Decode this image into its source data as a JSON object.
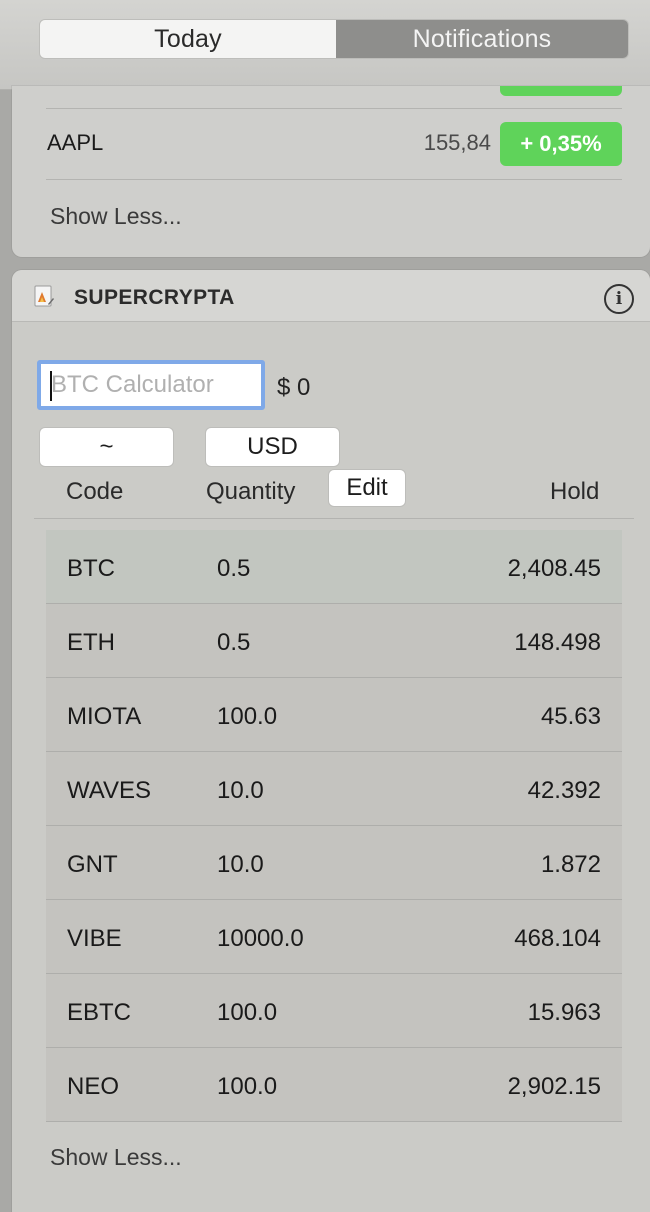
{
  "header": {
    "tabs": [
      "Today",
      "Notifications"
    ]
  },
  "stocks": {
    "row": {
      "symbol": "AAPL",
      "price": "155,84",
      "change": "+ 0,35%"
    },
    "show_less": "Show Less..."
  },
  "crypto": {
    "title": "SUPERCRYPTA",
    "calculator": {
      "placeholder": "BTC Calculator",
      "result": "$ 0"
    },
    "selectors": {
      "left": "~",
      "currency": "USD"
    },
    "columns": {
      "code": "Code",
      "quantity": "Quantity",
      "edit": "Edit",
      "hold": "Hold"
    },
    "rows": [
      {
        "code": "BTC",
        "quantity": "0.5",
        "hold": "2,408.45"
      },
      {
        "code": "ETH",
        "quantity": "0.5",
        "hold": "148.498"
      },
      {
        "code": "MIOTA",
        "quantity": "100.0",
        "hold": "45.63"
      },
      {
        "code": "WAVES",
        "quantity": "10.0",
        "hold": "42.392"
      },
      {
        "code": "GNT",
        "quantity": "10.0",
        "hold": "1.872"
      },
      {
        "code": "VIBE",
        "quantity": "10000.0",
        "hold": "468.104"
      },
      {
        "code": "EBTC",
        "quantity": "100.0",
        "hold": "15.963"
      },
      {
        "code": "NEO",
        "quantity": "100.0",
        "hold": "2,902.15"
      }
    ],
    "show_less": "Show Less..."
  },
  "colors": {
    "accent_green": "#5fd35a",
    "focus_blue": "#7fa9e8"
  }
}
